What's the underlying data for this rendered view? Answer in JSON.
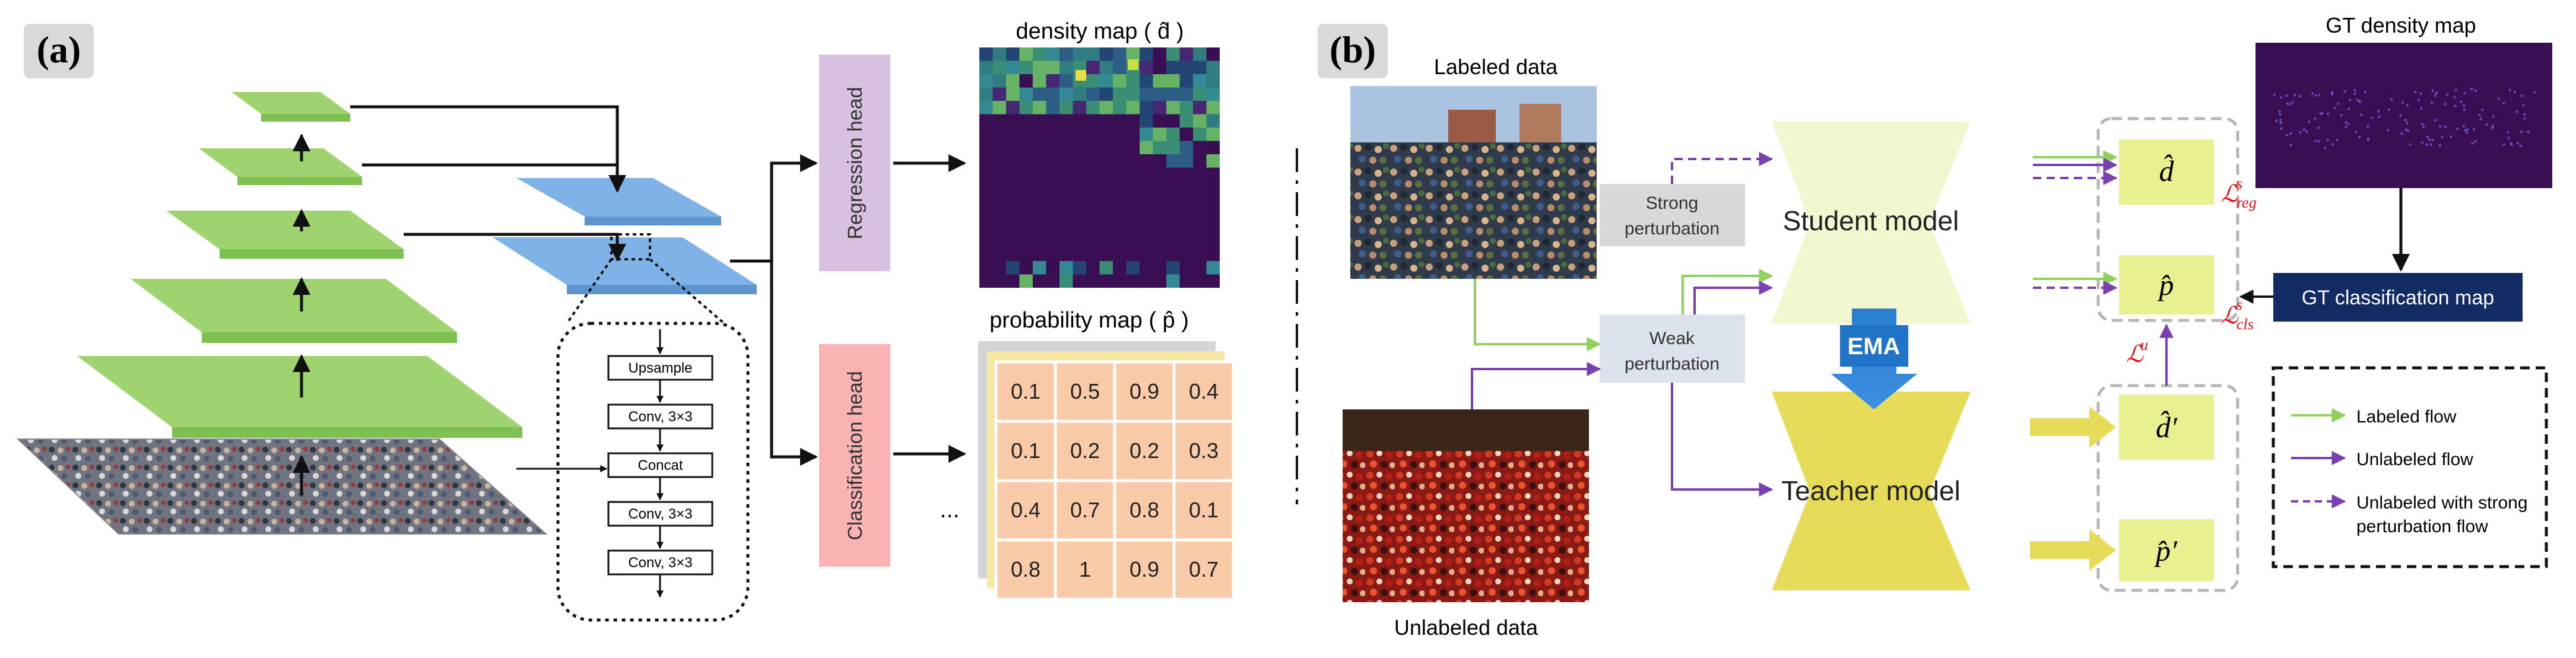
{
  "panel_a": {
    "label": "(a)",
    "regression_head": "Regression head",
    "classification_head": "Classification head",
    "density_map_title": "density map ( d̂ )",
    "probability_map_title": "probability map ( p̂ )",
    "ellipsis": "...",
    "fusion_block": [
      "Upsample",
      "Conv, 3×3",
      "Concat",
      "Conv, 3×3",
      "Conv, 3×3"
    ],
    "probability_grid": [
      [
        "0.1",
        "0.5",
        "0.9",
        "0.4"
      ],
      [
        "0.1",
        "0.2",
        "0.2",
        "0.3"
      ],
      [
        "0.4",
        "0.7",
        "0.8",
        "0.1"
      ],
      [
        "0.8",
        "1",
        "0.9",
        "0.7"
      ]
    ]
  },
  "panel_b": {
    "label": "(b)",
    "labeled_data": "Labeled data",
    "unlabeled_data": "Unlabeled data",
    "strong_perturbation": [
      "Strong",
      "perturbation"
    ],
    "weak_perturbation": [
      "Weak",
      "perturbation"
    ],
    "student_model": "Student model",
    "teacher_model": "Teacher model",
    "ema": "EMA",
    "gt_density_map": "GT density map",
    "gt_classification_map": "GT classification map",
    "outputs": {
      "d_hat": "d̂",
      "p_hat": "p̂",
      "d_hat_prime": "d̂′",
      "p_hat_prime": "p̂′"
    },
    "losses": {
      "reg_main": "ℒ",
      "reg_sup": "s",
      "reg_sub": "reg",
      "cls_main": "ℒ",
      "cls_sup": "s",
      "cls_sub": "cls",
      "unsup_main": "ℒ",
      "unsup_sup": "u"
    },
    "legend": {
      "labeled_flow": "Labeled flow",
      "unlabeled_flow": "Unlabeled flow",
      "strong_flow_line1": "Unlabeled with strong",
      "strong_flow_line2": "perturbation flow"
    }
  },
  "colors": {
    "green_layer": "#9ed36f",
    "blue_layer": "#7fb2e6",
    "regression_head": "#d7c0e0",
    "classification_head": "#f9b3b3",
    "density_bg": "#3a0e52",
    "prob_cell": "#f8caa8",
    "student": "#f2f7cf",
    "teacher": "#e6dc5a",
    "output_box": "#e8f090",
    "ema": "#1f74c8",
    "gt_box": "#132b63",
    "labeled_flow": "#8fd15a",
    "unlabeled_flow": "#7a3fb0",
    "loss_red": "#e01010"
  }
}
